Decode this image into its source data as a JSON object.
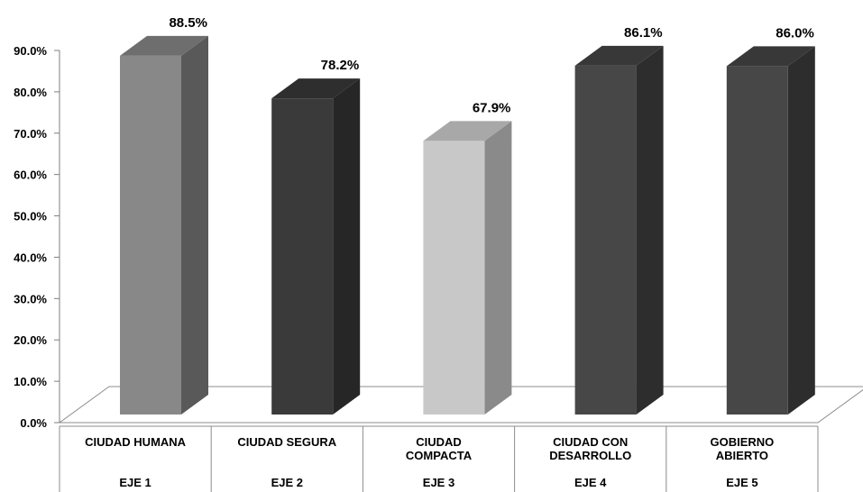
{
  "chart_data": {
    "type": "bar",
    "three_d": true,
    "categories": [
      {
        "name": [
          "CIUDAD HUMANA"
        ],
        "group": "EJE 1"
      },
      {
        "name": [
          "CIUDAD SEGURA"
        ],
        "group": "EJE 2"
      },
      {
        "name": [
          "CIUDAD",
          "COMPACTA"
        ],
        "group": "EJE 3"
      },
      {
        "name": [
          "CIUDAD CON",
          "DESARROLLO"
        ],
        "group": "EJE 4"
      },
      {
        "name": [
          "GOBIERNO",
          "ABIERTO"
        ],
        "group": "EJE 5"
      }
    ],
    "values": [
      88.5,
      78.2,
      67.9,
      86.1,
      86.0
    ],
    "data_labels": [
      "88.5%",
      "78.2%",
      "67.9%",
      "86.1%",
      "86.0%"
    ],
    "ylim": [
      0,
      90
    ],
    "yticks": [
      "0.0%",
      "10.0%",
      "20.0%",
      "30.0%",
      "40.0%",
      "50.0%",
      "60.0%",
      "70.0%",
      "80.0%",
      "90.0%"
    ],
    "bar_colors": [
      {
        "front": "#888888",
        "side": "#595959",
        "top": "#6e6e6e"
      },
      {
        "front": "#3a3a3a",
        "side": "#262626",
        "top": "#2e2e2e"
      },
      {
        "front": "#c8c8c8",
        "side": "#8a8a8a",
        "top": "#a8a8a8"
      },
      {
        "front": "#474747",
        "side": "#2d2d2d",
        "top": "#383838"
      },
      {
        "front": "#474747",
        "side": "#2d2d2d",
        "top": "#383838"
      }
    ],
    "title": "",
    "xlabel": "",
    "ylabel": "",
    "grid": false,
    "legend": "none"
  }
}
